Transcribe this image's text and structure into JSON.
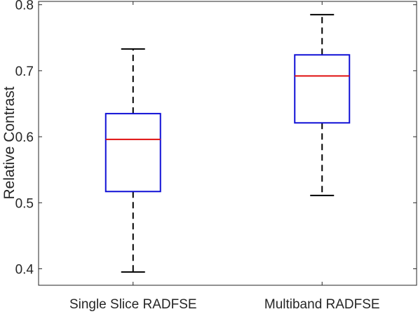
{
  "chart_data": {
    "type": "box",
    "ylabel": "Relative Contrast",
    "xlabel": "",
    "ylim": [
      0.375,
      0.805
    ],
    "yticks": [
      0.4,
      0.5,
      0.6,
      0.7,
      0.8
    ],
    "yticklabels": [
      "0.4",
      "0.5",
      "0.6",
      "0.7",
      "0.8"
    ],
    "grid": false,
    "categories": [
      "Single Slice RADFSE",
      "Multiband RADFSE"
    ],
    "boxes": [
      {
        "category": "Single Slice RADFSE",
        "whisker_low": 0.395,
        "q1": 0.517,
        "median": 0.596,
        "q3": 0.635,
        "whisker_high": 0.733
      },
      {
        "category": "Multiband RADFSE",
        "whisker_low": 0.511,
        "q1": 0.621,
        "median": 0.692,
        "q3": 0.724,
        "whisker_high": 0.785
      }
    ],
    "colors": {
      "box": "#1010d6",
      "median": "#e01010",
      "whisker": "#000000",
      "axis": "#262626"
    }
  }
}
